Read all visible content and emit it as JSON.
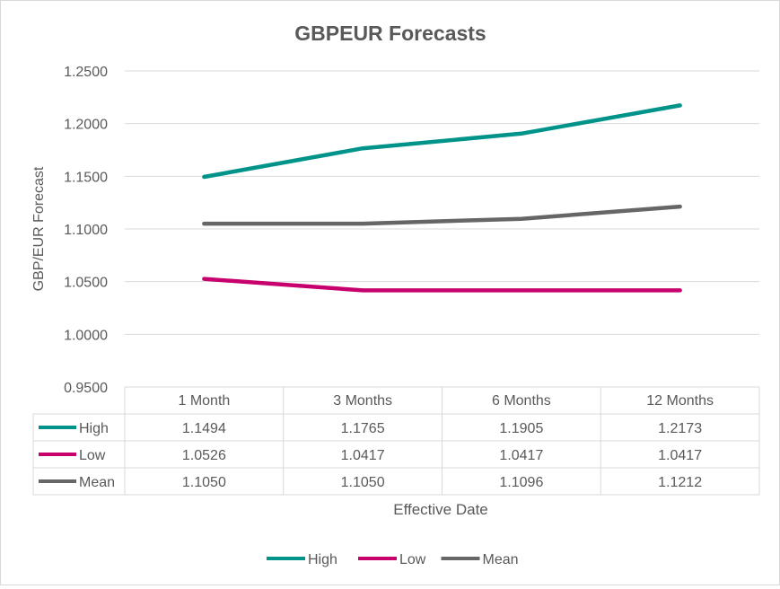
{
  "chart_data": {
    "type": "line",
    "title": "GBPEUR Forecasts",
    "xlabel": "Effective Date",
    "ylabel": "GBP/EUR Forecast",
    "categories": [
      "1 Month",
      "3 Months",
      "6 Months",
      "12 Months"
    ],
    "ylim": [
      0.95,
      1.25
    ],
    "yticks": [
      "1.2500",
      "1.2000",
      "1.1500",
      "1.1000",
      "1.0500",
      "1.0000",
      "0.9500"
    ],
    "series": [
      {
        "name": "High",
        "color": "#00938a",
        "values": [
          1.1494,
          1.1765,
          1.1905,
          1.2173
        ],
        "labels": [
          "1.1494",
          "1.1765",
          "1.1905",
          "1.2173"
        ]
      },
      {
        "name": "Low",
        "color": "#c8006e",
        "values": [
          1.0526,
          1.0417,
          1.0417,
          1.0417
        ],
        "labels": [
          "1.0526",
          "1.0417",
          "1.0417",
          "1.0417"
        ]
      },
      {
        "name": "Mean",
        "color": "#666666",
        "values": [
          1.105,
          1.105,
          1.1096,
          1.1212
        ],
        "labels": [
          "1.1050",
          "1.1050",
          "1.1096",
          "1.1212"
        ]
      }
    ],
    "grid": true,
    "data_table": true,
    "legend_position": "bottom"
  }
}
